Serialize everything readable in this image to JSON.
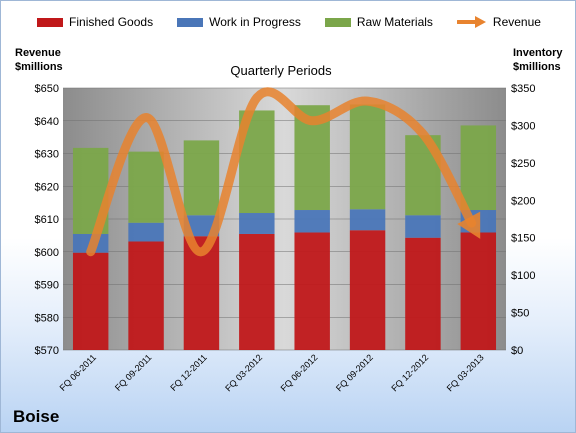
{
  "company": "Boise",
  "chart_data": {
    "type": "bar",
    "title": "Quarterly Periods",
    "categories": [
      "FQ 06-2011",
      "FQ 09-2011",
      "FQ 12-2011",
      "FQ 03-2012",
      "FQ 06-2012",
      "FQ 09-2012",
      "FQ 12-2012",
      "FQ 03-2013"
    ],
    "stacked": true,
    "series": [
      {
        "name": "Finished Goods",
        "axis": "right",
        "color": "#c0181a",
        "values": [
          130,
          145,
          152,
          155,
          157,
          160,
          150,
          157
        ]
      },
      {
        "name": "Work in Progress",
        "axis": "right",
        "color": "#4a76b8",
        "values": [
          25,
          25,
          28,
          28,
          30,
          28,
          30,
          30
        ]
      },
      {
        "name": "Raw Materials",
        "axis": "right",
        "color": "#7ba64a",
        "values": [
          115,
          95,
          100,
          137,
          140,
          140,
          107,
          113
        ]
      },
      {
        "name": "Revenue",
        "axis": "left",
        "type": "line",
        "color": "#e8832e",
        "values": [
          600,
          641,
          600,
          647,
          640,
          646,
          636,
          605
        ]
      }
    ],
    "ylabel_left": "Revenue\n$millions",
    "ylabel_right": "Inventory\n$millions",
    "ylim_left": [
      570,
      650
    ],
    "ylim_right": [
      0,
      350
    ],
    "yticks_left": [
      "$570",
      "$580",
      "$590",
      "$600",
      "$610",
      "$620",
      "$630",
      "$640",
      "$650"
    ],
    "yticks_right": [
      "$0",
      "$50",
      "$100",
      "$150",
      "$200",
      "$250",
      "$300",
      "$350"
    ],
    "legend_position": "top",
    "grid": true,
    "plot_background": "#b3b3b3"
  }
}
